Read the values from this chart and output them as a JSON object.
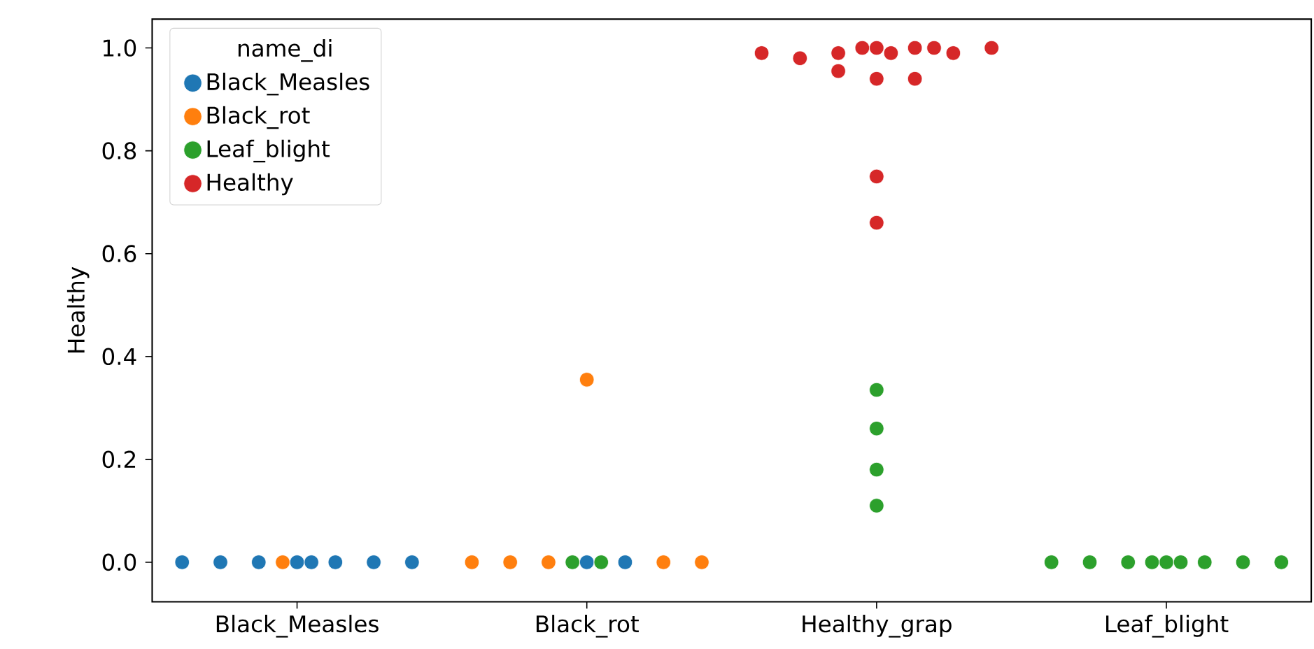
{
  "chart_data": {
    "type": "scatter",
    "ylabel": "Healthy",
    "legend_title": "name_di",
    "legend": "top left",
    "marker": "circle",
    "categories": [
      "Black_Measles",
      "Black_rot",
      "Healthy_grap",
      "Leaf_blight"
    ],
    "ylim": [
      -0.077,
      1.056
    ],
    "yticks": [
      {
        "value": 0,
        "label": "0.0"
      },
      {
        "value": 0.2,
        "label": "0.2"
      },
      {
        "value": 0.4,
        "label": "0.4"
      },
      {
        "value": 0.6,
        "label": "0.6"
      },
      {
        "value": 0.8,
        "label": "0.8"
      },
      {
        "value": 1,
        "label": "1.0"
      }
    ],
    "series": [
      {
        "name": "Black_Measles",
        "color": "#1f77b4",
        "x": [
          "Black_Measles",
          "Black_Measles",
          "Black_Measles",
          "Black_Measles",
          "Black_Measles",
          "Black_Measles",
          "Black_Measles",
          "Black_Measles",
          "Black_rot",
          "Black_rot"
        ],
        "values": [
          0,
          0,
          0,
          0,
          0,
          0,
          0,
          0,
          0,
          0
        ]
      },
      {
        "name": "Black_rot",
        "color": "#ff7f0e",
        "x": [
          "Black_Measles",
          "Black_rot",
          "Black_rot",
          "Black_rot",
          "Black_rot",
          "Black_rot",
          "Black_rot"
        ],
        "values": [
          0,
          0,
          0,
          0,
          0,
          0,
          0.355
        ]
      },
      {
        "name": "Leaf_blight",
        "color": "#2ca02c",
        "x": [
          "Black_rot",
          "Black_rot",
          "Healthy_grap",
          "Healthy_grap",
          "Healthy_grap",
          "Healthy_grap",
          "Leaf_blight",
          "Leaf_blight",
          "Leaf_blight",
          "Leaf_blight",
          "Leaf_blight",
          "Leaf_blight",
          "Leaf_blight",
          "Leaf_blight",
          "Leaf_blight"
        ],
        "values": [
          0,
          0,
          0.335,
          0.26,
          0.18,
          0.11,
          0,
          0,
          0,
          0,
          0,
          0,
          0,
          0,
          0
        ]
      },
      {
        "name": "Healthy",
        "color": "#d62728",
        "x": [
          "Healthy_grap",
          "Healthy_grap",
          "Healthy_grap",
          "Healthy_grap",
          "Healthy_grap",
          "Healthy_grap",
          "Healthy_grap",
          "Healthy_grap",
          "Healthy_grap",
          "Healthy_grap",
          "Healthy_grap",
          "Healthy_grap",
          "Healthy_grap",
          "Healthy_grap",
          "Healthy_grap"
        ],
        "values": [
          1,
          1,
          0.99,
          0.99,
          0.94,
          0.98,
          0.94,
          1,
          0.955,
          0.99,
          0.99,
          1,
          1,
          0.75,
          0.66
        ]
      }
    ]
  }
}
